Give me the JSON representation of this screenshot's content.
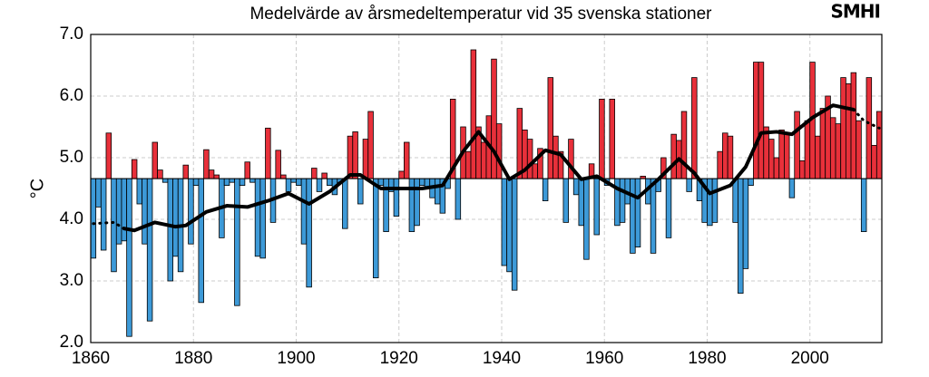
{
  "chart_data": {
    "type": "bar",
    "title": "Medelvärde av årsmedeltemperatur vid 35 svenska stationer",
    "logo": "SMHI",
    "ylabel": "°C",
    "x": [
      1860,
      1861,
      1862,
      1863,
      1864,
      1865,
      1866,
      1867,
      1868,
      1869,
      1870,
      1871,
      1872,
      1873,
      1874,
      1875,
      1876,
      1877,
      1878,
      1879,
      1880,
      1881,
      1882,
      1883,
      1884,
      1885,
      1886,
      1887,
      1888,
      1889,
      1890,
      1891,
      1892,
      1893,
      1894,
      1895,
      1896,
      1897,
      1898,
      1899,
      1900,
      1901,
      1902,
      1903,
      1904,
      1905,
      1906,
      1907,
      1908,
      1909,
      1910,
      1911,
      1912,
      1913,
      1914,
      1915,
      1916,
      1917,
      1918,
      1919,
      1920,
      1921,
      1922,
      1923,
      1924,
      1925,
      1926,
      1927,
      1928,
      1929,
      1930,
      1931,
      1932,
      1933,
      1934,
      1935,
      1936,
      1937,
      1938,
      1939,
      1940,
      1941,
      1942,
      1943,
      1944,
      1945,
      1946,
      1947,
      1948,
      1949,
      1950,
      1951,
      1952,
      1953,
      1954,
      1955,
      1956,
      1957,
      1958,
      1959,
      1960,
      1961,
      1962,
      1963,
      1964,
      1965,
      1966,
      1967,
      1968,
      1969,
      1970,
      1971,
      1972,
      1973,
      1974,
      1975,
      1976,
      1977,
      1978,
      1979,
      1980,
      1981,
      1982,
      1983,
      1984,
      1985,
      1986,
      1987,
      1988,
      1989,
      1990,
      1991,
      1992,
      1993,
      1994,
      1995,
      1996,
      1997,
      1998,
      1999,
      2000,
      2001,
      2002,
      2003,
      2004,
      2005,
      2006,
      2007,
      2008,
      2009,
      2010,
      2011,
      2012,
      2013
    ],
    "values": [
      3.37,
      4.2,
      3.5,
      5.4,
      3.15,
      3.6,
      3.65,
      2.1,
      4.97,
      4.25,
      3.6,
      2.35,
      5.25,
      4.8,
      4.6,
      3.0,
      3.4,
      3.15,
      4.88,
      3.6,
      4.55,
      2.65,
      5.13,
      4.8,
      4.72,
      3.7,
      4.55,
      4.6,
      2.6,
      4.55,
      4.93,
      4.6,
      3.4,
      3.37,
      5.48,
      3.95,
      5.12,
      4.72,
      4.45,
      4.6,
      4.55,
      3.6,
      2.9,
      4.83,
      4.45,
      4.75,
      4.55,
      4.4,
      4.6,
      3.85,
      5.35,
      5.42,
      4.25,
      5.3,
      5.75,
      3.05,
      4.55,
      3.8,
      4.45,
      4.05,
      4.78,
      5.25,
      3.8,
      3.9,
      4.55,
      4.5,
      4.35,
      4.25,
      4.1,
      4.5,
      5.95,
      4.0,
      5.5,
      5.1,
      6.75,
      5.5,
      5.25,
      5.68,
      6.6,
      5.55,
      3.25,
      3.15,
      2.85,
      5.8,
      5.45,
      5.3,
      4.9,
      5.15,
      4.3,
      6.3,
      5.35,
      5.1,
      3.95,
      5.3,
      4.4,
      3.9,
      3.35,
      4.9,
      3.75,
      5.95,
      4.55,
      5.95,
      3.9,
      3.95,
      4.25,
      3.45,
      3.55,
      4.7,
      4.25,
      3.45,
      4.45,
      5.0,
      3.7,
      5.38,
      5.28,
      5.75,
      4.45,
      6.3,
      4.3,
      3.95,
      3.9,
      3.95,
      5.1,
      5.4,
      5.35,
      3.95,
      2.8,
      3.2,
      4.55,
      6.55,
      6.55,
      5.5,
      5.3,
      5.0,
      5.45,
      5.4,
      4.35,
      5.75,
      4.95,
      5.6,
      6.55,
      5.35,
      5.8,
      6.0,
      5.65,
      5.55,
      6.3,
      6.2,
      6.38,
      5.6,
      3.8,
      6.3,
      5.2,
      5.75
    ],
    "baseline": 4.66,
    "colors": {
      "above": "#e8303a",
      "below": "#3d9ad8"
    },
    "smooth": {
      "x": [
        1860,
        1864,
        1866,
        1868,
        1872,
        1876,
        1878,
        1882,
        1886,
        1890,
        1894,
        1898,
        1902,
        1906,
        1910,
        1912,
        1916,
        1920,
        1924,
        1928,
        1932,
        1935,
        1938,
        1941,
        1944,
        1948,
        1951,
        1955,
        1958,
        1962,
        1966,
        1970,
        1974,
        1977,
        1980,
        1984,
        1987,
        1990,
        1993,
        1996,
        2000,
        2004,
        2008,
        2010,
        2013
      ],
      "values": [
        3.93,
        3.95,
        3.85,
        3.82,
        3.95,
        3.88,
        3.9,
        4.12,
        4.22,
        4.2,
        4.3,
        4.42,
        4.25,
        4.45,
        4.72,
        4.72,
        4.5,
        4.5,
        4.5,
        4.55,
        5.1,
        5.42,
        5.1,
        4.65,
        4.8,
        5.12,
        5.05,
        4.65,
        4.7,
        4.5,
        4.35,
        4.65,
        4.98,
        4.75,
        4.42,
        4.55,
        4.85,
        5.4,
        5.42,
        5.38,
        5.65,
        5.85,
        5.78,
        5.6,
        5.48
      ],
      "solid_range": [
        1866,
        2008
      ],
      "color": "#000000"
    },
    "xlim": [
      1860,
      2014
    ],
    "xticks": [
      1860,
      1880,
      1900,
      1920,
      1940,
      1960,
      1980,
      2000
    ],
    "ylim": [
      2,
      7
    ],
    "yticks": [
      {
        "value": 2,
        "label": "2.0"
      },
      {
        "value": 3,
        "label": "3.0"
      },
      {
        "value": 4,
        "label": "4.0"
      },
      {
        "value": 5,
        "label": "5.0"
      },
      {
        "value": 6,
        "label": "6.0"
      },
      {
        "value": 7,
        "label": "7.0"
      }
    ],
    "grid": true
  }
}
